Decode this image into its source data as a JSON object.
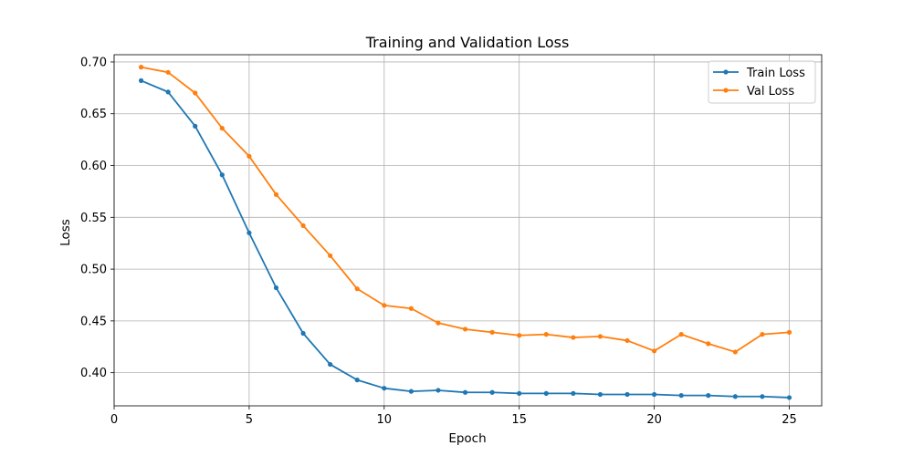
{
  "chart_data": {
    "type": "line",
    "title": "Training and Validation Loss",
    "xlabel": "Epoch",
    "ylabel": "Loss",
    "xlim": [
      0,
      26.2
    ],
    "ylim": [
      0.368,
      0.707
    ],
    "xticks": [
      0,
      5,
      10,
      15,
      20,
      25
    ],
    "yticks": [
      0.4,
      0.45,
      0.5,
      0.55,
      0.6,
      0.65,
      0.7
    ],
    "grid": true,
    "legend_position": "top-right",
    "x": [
      1,
      2,
      3,
      4,
      5,
      6,
      7,
      8,
      9,
      10,
      11,
      12,
      13,
      14,
      15,
      16,
      17,
      18,
      19,
      20,
      21,
      22,
      23,
      24,
      25
    ],
    "series": [
      {
        "name": "Train Loss",
        "color": "#1f77b4",
        "values": [
          0.682,
          0.671,
          0.638,
          0.591,
          0.535,
          0.482,
          0.438,
          0.408,
          0.393,
          0.385,
          0.382,
          0.383,
          0.381,
          0.381,
          0.38,
          0.38,
          0.38,
          0.379,
          0.379,
          0.379,
          0.378,
          0.378,
          0.377,
          0.377,
          0.376
        ]
      },
      {
        "name": "Val Loss",
        "color": "#ff7f0e",
        "values": [
          0.695,
          0.69,
          0.67,
          0.636,
          0.609,
          0.572,
          0.542,
          0.513,
          0.481,
          0.465,
          0.462,
          0.448,
          0.442,
          0.439,
          0.436,
          0.437,
          0.434,
          0.435,
          0.431,
          0.421,
          0.437,
          0.428,
          0.42,
          0.437,
          0.439
        ]
      }
    ]
  }
}
